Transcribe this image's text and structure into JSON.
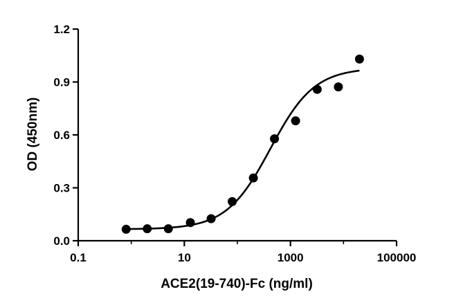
{
  "chart_data": {
    "type": "scatter",
    "title": "",
    "xlabel": "ACE2(19-740)-Fc (ng/ml)",
    "ylabel": "OD (450nm)",
    "x_scale": "log10",
    "xlim": [
      0.1,
      100000
    ],
    "ylim": [
      0.0,
      1.2
    ],
    "x_ticks": [
      0.1,
      10,
      1000,
      100000
    ],
    "x_tick_labels": [
      "0.1",
      "10",
      "1000",
      "100000"
    ],
    "y_ticks": [
      0.0,
      0.3,
      0.6,
      0.9,
      1.2
    ],
    "y_tick_labels": [
      "0.0",
      "0.3",
      "0.6",
      "0.9",
      "1.2"
    ],
    "grid": false,
    "legend": "none",
    "series": [
      {
        "type": "scatter",
        "x": [
          0.8,
          2,
          5,
          13,
          32,
          80,
          200,
          500,
          1250,
          3200,
          8000,
          20000
        ],
        "y": [
          0.065,
          0.068,
          0.068,
          0.103,
          0.125,
          0.222,
          0.356,
          0.578,
          0.68,
          0.858,
          0.872,
          1.03
        ]
      },
      {
        "type": "line",
        "fit": "4PL",
        "bottom": 0.065,
        "top": 0.98,
        "ec50": 420,
        "hill": 1.05
      }
    ],
    "colors": {
      "marker": "#000000",
      "curve": "#000000"
    }
  }
}
